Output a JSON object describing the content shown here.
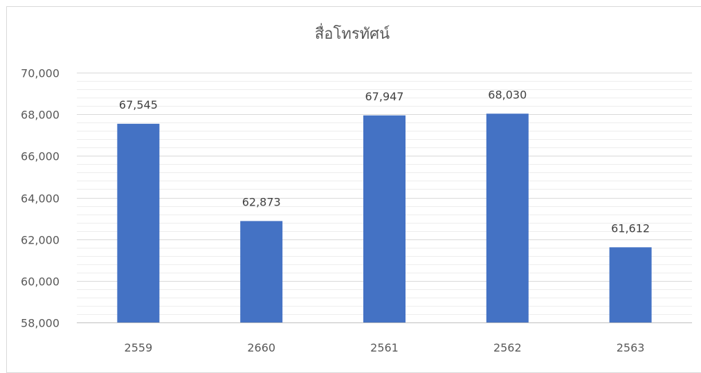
{
  "chart_data": {
    "type": "bar",
    "title": "สื่อโทรทัศน์",
    "categories": [
      "2559",
      "2660",
      "2561",
      "2562",
      "2563"
    ],
    "values": [
      67545,
      62873,
      67947,
      68030,
      61612
    ],
    "value_labels": [
      "67,545",
      "62,873",
      "67,947",
      "68,030",
      "61,612"
    ],
    "ylim": [
      58000,
      70000
    ],
    "yticks": [
      58000,
      60000,
      62000,
      64000,
      66000,
      68000,
      70000
    ],
    "ytick_labels": [
      "58,000",
      "60,000",
      "62,000",
      "64,000",
      "66,000",
      "68,000",
      "70,000"
    ],
    "minor_ytick_step": 400,
    "grid": true,
    "legend": "none",
    "bar_color": "#4472c4",
    "major_grid_color": "#d9d9d9",
    "minor_grid_color": "#ededed"
  }
}
